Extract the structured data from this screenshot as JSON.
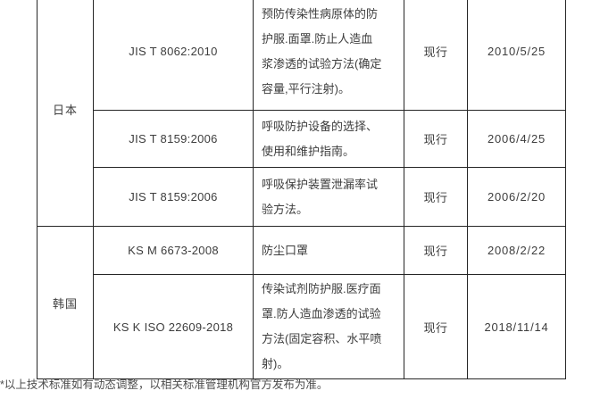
{
  "table": {
    "columns": [
      "country",
      "standard_number",
      "description",
      "status",
      "publish_date"
    ],
    "groups": [
      {
        "country": "日本",
        "rows": [
          {
            "standard": "JIS T 8062:2010",
            "description": "预防传染性病原体的防护服.面罩.防止人造血浆渗透的试验方法(确定容量,平行注射)。",
            "status": "现行",
            "date": "2010/5/25"
          },
          {
            "standard": "JIS T 8159:2006",
            "description": "呼吸防护设备的选择、使用和维护指南。",
            "status": "现行",
            "date": "2006/4/25"
          },
          {
            "standard": "JIS T 8159:2006",
            "description": "呼吸保护装置泄漏率试验方法。",
            "status": "现行",
            "date": "2006/2/20"
          }
        ]
      },
      {
        "country": "韩国",
        "rows": [
          {
            "standard": "KS M 6673-2008",
            "description": "防尘口罩",
            "status": "现行",
            "date": "2008/2/22"
          },
          {
            "standard": "KS K ISO 22609-2018",
            "description": "传染试剂防护服.医疗面罩.防人造血渗透的试验方法(固定容积、水平喷射)。",
            "status": "现行",
            "date": "2018/11/14"
          }
        ]
      }
    ]
  },
  "footnote": "*以上技术标准如有动态调整，以相关标准管理机构官方发布为准。",
  "colors": {
    "border": "#262626",
    "text": "#3d3d3d",
    "footnote": "#4d4d4d"
  }
}
